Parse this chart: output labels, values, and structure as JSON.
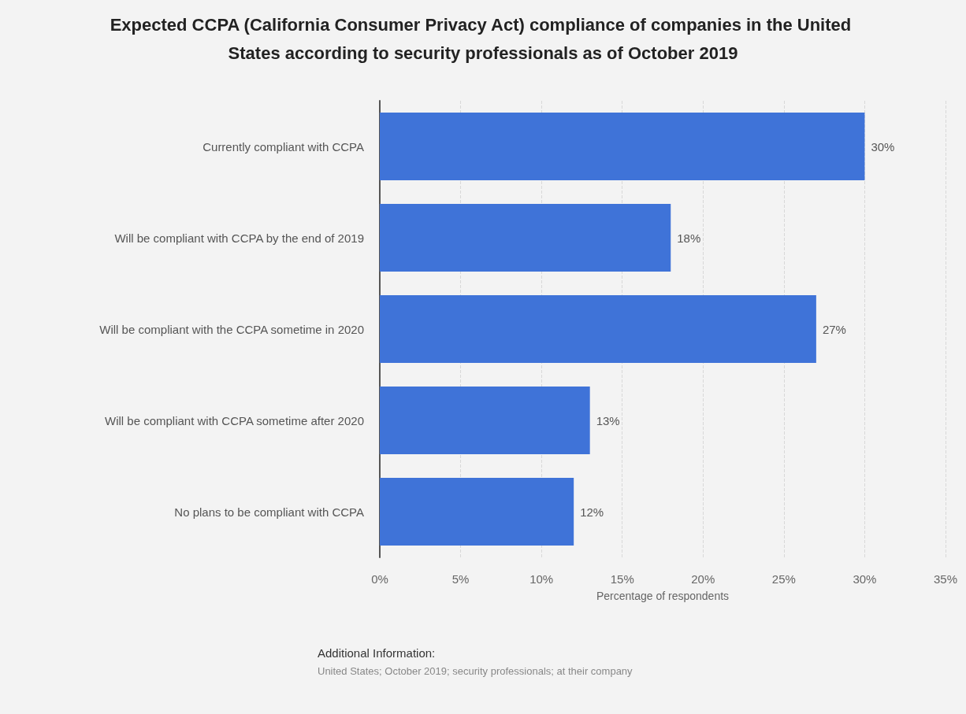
{
  "chart_data": {
    "type": "bar",
    "orientation": "horizontal",
    "title": "Expected CCPA (California Consumer Privacy Act) compliance of companies in the United States according to security professionals as of October 2019",
    "xlabel": "Percentage of respondents",
    "categories": [
      "Currently compliant with CCPA",
      "Will be compliant with CCPA by the end of 2019",
      "Will be compliant with the CCPA sometime in 2020",
      "Will be compliant with CCPA sometime after 2020",
      "No plans to be compliant with CCPA"
    ],
    "values": [
      30,
      18,
      27,
      13,
      12
    ],
    "value_labels": [
      "30%",
      "18%",
      "27%",
      "13%",
      "12%"
    ],
    "color": "#3f73d8",
    "xlim": [
      0,
      35
    ],
    "xticks": [
      {
        "value": 0,
        "label": "0%"
      },
      {
        "value": 5,
        "label": "5%"
      },
      {
        "value": 10,
        "label": "10%"
      },
      {
        "value": 15,
        "label": "15%"
      },
      {
        "value": 20,
        "label": "20%"
      },
      {
        "value": 25,
        "label": "25%"
      },
      {
        "value": 30,
        "label": "30%"
      },
      {
        "value": 35,
        "label": "35%"
      }
    ],
    "grid": "x",
    "annotations": [
      "Additional Information:",
      "United States; October 2019; security professionals; at their company"
    ]
  }
}
